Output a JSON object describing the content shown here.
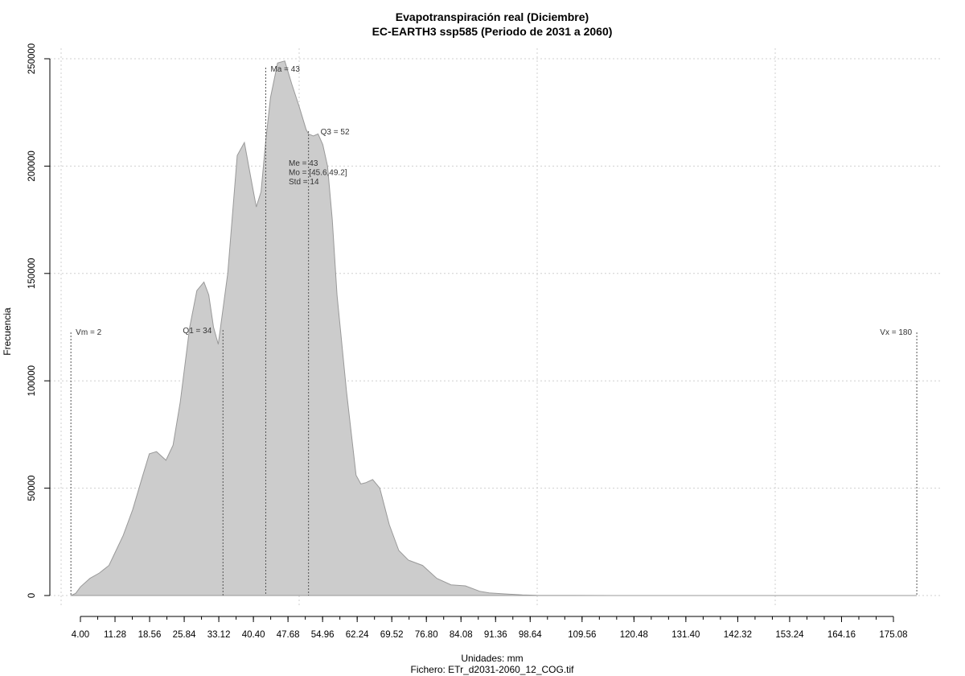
{
  "chart_data": {
    "type": "area",
    "title": "Evapotranspiración real (Diciembre)",
    "subtitle": "EC-EARTH3 ssp585 (Periodo de 2031 a 2060)",
    "xlabel": "Unidades: mm",
    "xlabel2": "Fichero: ETr_d2031-2060_12_COG.tif",
    "ylabel": "Frecuencia",
    "xlim": [
      0,
      185
    ],
    "ylim": [
      0,
      255000
    ],
    "grid": true,
    "x_ticks": [
      "4.00",
      "11.28",
      "18.56",
      "25.84",
      "33.12",
      "40.40",
      "47.68",
      "54.96",
      "62.24",
      "69.52",
      "76.80",
      "84.08",
      "91.36",
      "98.64",
      "109.56",
      "120.48",
      "131.40",
      "142.32",
      "153.24",
      "164.16",
      "175.08"
    ],
    "y_ticks": [
      "0",
      "50000",
      "100000",
      "150000",
      "200000",
      "250000"
    ],
    "fill_color": "#cccccc",
    "line_color": "#999999",
    "x": [
      2,
      3,
      4,
      6,
      8,
      10,
      11.3,
      13,
      15,
      17,
      18.5,
      20,
      22,
      23.5,
      25,
      27,
      28.5,
      30,
      31,
      32,
      33,
      35,
      37,
      38.5,
      40,
      41,
      42,
      43,
      44,
      45.5,
      47,
      48.5,
      50,
      51.5,
      52,
      53,
      54,
      55,
      56,
      57,
      58,
      60,
      62,
      63,
      64,
      65.5,
      67,
      69,
      71,
      73,
      76,
      79,
      82,
      85,
      88,
      90,
      93,
      97,
      100,
      120,
      150,
      180
    ],
    "y": [
      0,
      1000,
      4000,
      8000,
      10500,
      14000,
      20000,
      28000,
      40000,
      55000,
      66000,
      67000,
      63000,
      70000,
      90000,
      125000,
      142000,
      146000,
      140000,
      125000,
      117000,
      150000,
      205000,
      211000,
      193000,
      181000,
      188000,
      212000,
      232000,
      248000,
      249000,
      238000,
      228000,
      217000,
      215000,
      214000,
      215000,
      210000,
      200000,
      175000,
      140000,
      95000,
      56000,
      52000,
      52500,
      54000,
      50000,
      33000,
      21000,
      16500,
      14000,
      8000,
      5000,
      4500,
      2000,
      1200,
      800,
      300,
      100,
      0,
      0,
      0
    ],
    "annotations": {
      "vm": {
        "label": "Vm = 2",
        "x": 2
      },
      "q1": {
        "label": "Q1 = 34",
        "x": 34
      },
      "ma": {
        "label": "Ma = 43",
        "x": 43
      },
      "q3": {
        "label": "Q3 = 52",
        "x": 52
      },
      "vx": {
        "label": "Vx = 180",
        "x": 180
      },
      "stats": [
        "Me = 43",
        "Mo = [45.6,49.2]",
        "Std = 14"
      ]
    }
  }
}
